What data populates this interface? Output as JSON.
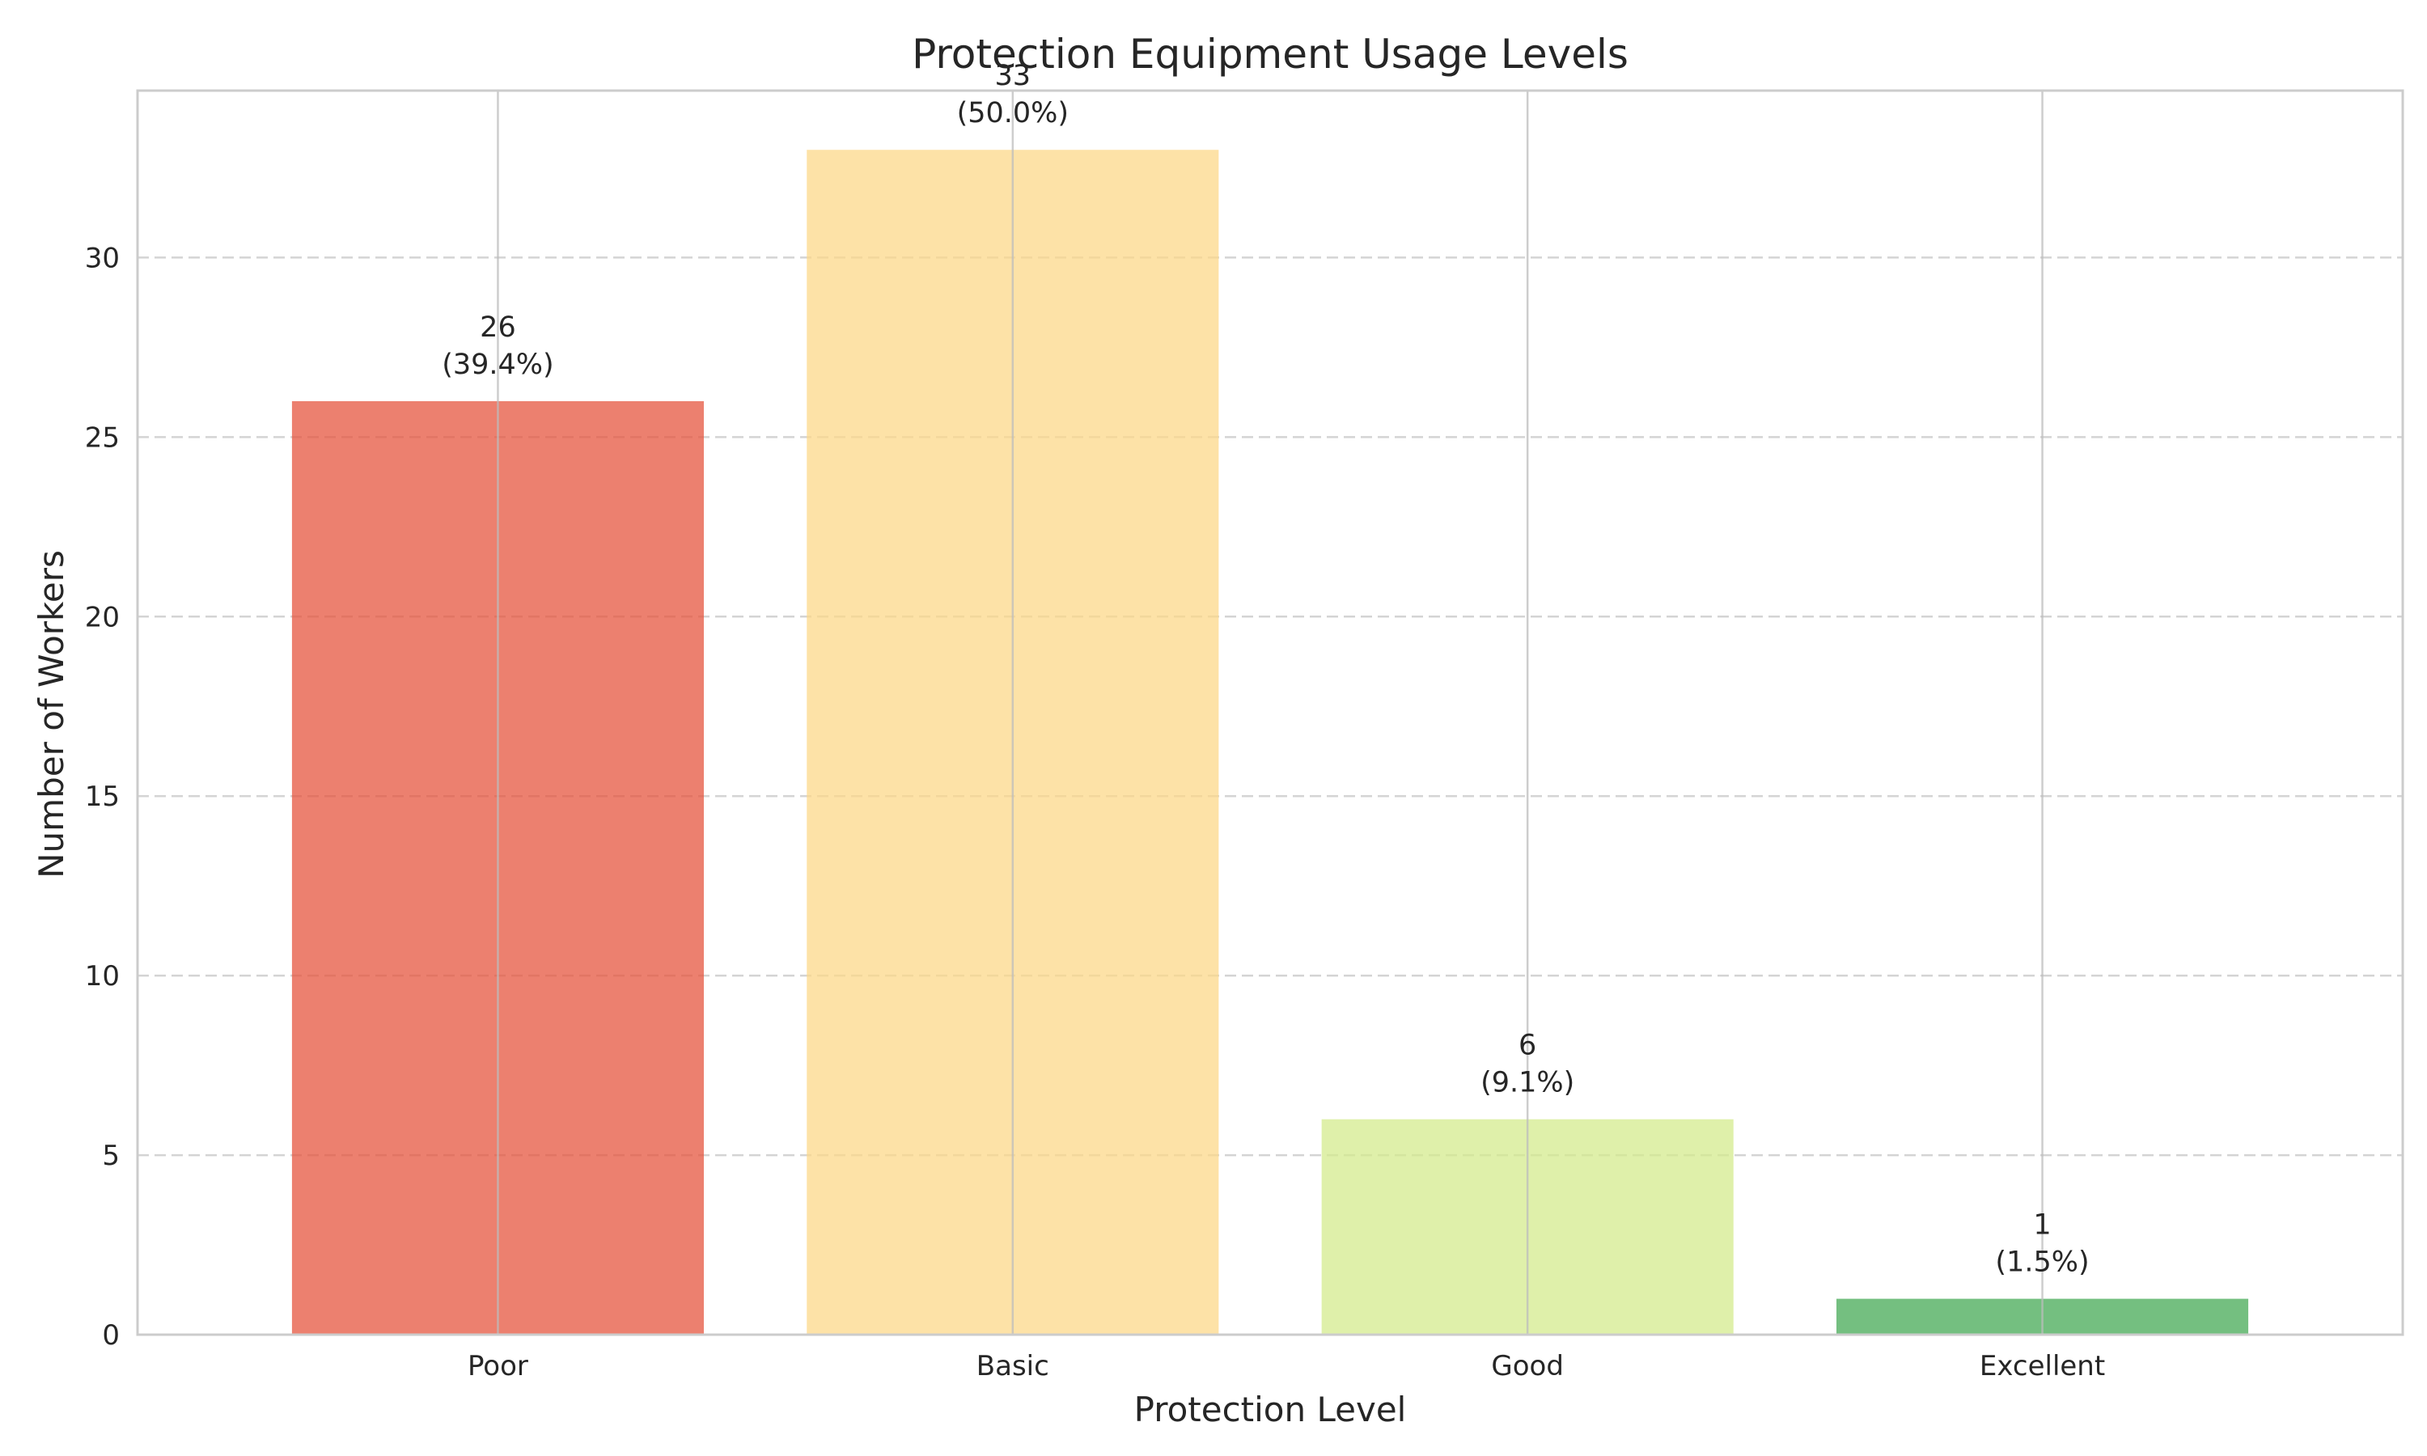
{
  "chart_data": {
    "type": "bar",
    "title": "Protection Equipment Usage Levels",
    "xlabel": "Protection Level",
    "ylabel": "Number of Workers",
    "categories": [
      "Poor",
      "Basic",
      "Good",
      "Excellent"
    ],
    "values": [
      26,
      33,
      6,
      1
    ],
    "percent_labels": [
      "(39.4%)",
      "(50.0%)",
      "(9.1%)",
      "(1.5%)"
    ],
    "colors": [
      "#e6553f",
      "#fcd88a",
      "#d4eb8e",
      "#45a955"
    ],
    "ylim": [
      0,
      34.65
    ],
    "yticks": [
      0,
      5,
      10,
      15,
      20,
      25,
      30
    ],
    "grid": {
      "y": true,
      "y_style": "dashed",
      "x": true
    }
  }
}
